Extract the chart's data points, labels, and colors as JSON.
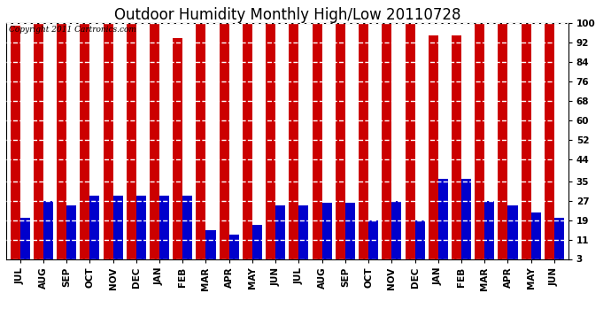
{
  "title": "Outdoor Humidity Monthly High/Low 20110728",
  "copyright_text": "Copyright 2011 Cartronics.com",
  "months": [
    "JUL",
    "AUG",
    "SEP",
    "OCT",
    "NOV",
    "DEC",
    "JAN",
    "FEB",
    "MAR",
    "APR",
    "MAY",
    "JUN",
    "JUL",
    "AUG",
    "SEP",
    "OCT",
    "NOV",
    "DEC",
    "JAN",
    "FEB",
    "MAR",
    "APR",
    "MAY",
    "JUN"
  ],
  "highs": [
    99,
    100,
    100,
    100,
    100,
    100,
    100,
    94,
    100,
    100,
    100,
    100,
    100,
    100,
    100,
    100,
    100,
    100,
    95,
    95,
    100,
    100,
    100,
    100
  ],
  "lows": [
    20,
    27,
    25,
    29,
    29,
    29,
    29,
    29,
    15,
    13,
    17,
    25,
    25,
    26,
    26,
    19,
    27,
    19,
    36,
    36,
    27,
    25,
    22,
    20
  ],
  "high_color": "#cc0000",
  "low_color": "#0000cc",
  "background_color": "#ffffff",
  "ymin": 3,
  "ymax": 100,
  "yticks": [
    3,
    11,
    19,
    27,
    35,
    44,
    52,
    60,
    68,
    76,
    84,
    92,
    100
  ],
  "bar_width": 0.42,
  "title_fontsize": 12,
  "tick_fontsize": 7.5,
  "copyright_fontsize": 6.5
}
